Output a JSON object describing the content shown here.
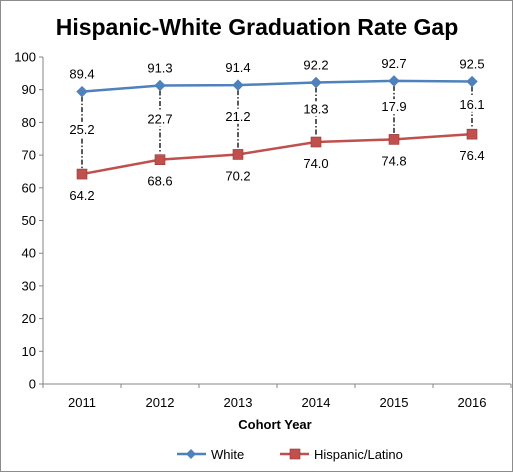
{
  "chart_data": {
    "type": "line",
    "title": "Hispanic-White Graduation Rate Gap",
    "xlabel": "Cohort Year",
    "ylabel": "",
    "categories": [
      "2011",
      "2012",
      "2013",
      "2014",
      "2015",
      "2016"
    ],
    "ylim": [
      0,
      100
    ],
    "yticks": [
      "0",
      "10",
      "20",
      "30",
      "40",
      "50",
      "60",
      "70",
      "80",
      "90",
      "100"
    ],
    "grid": false,
    "legend_position": "bottom",
    "series": [
      {
        "name": "White",
        "values": [
          89.4,
          91.3,
          91.4,
          92.2,
          92.7,
          92.5
        ],
        "labels": [
          "89.4",
          "91.3",
          "91.4",
          "92.2",
          "92.7",
          "92.5"
        ],
        "color": "#4f81bd",
        "marker": "diamond"
      },
      {
        "name": "Hispanic/Latino",
        "values": [
          64.2,
          68.6,
          70.2,
          74.0,
          74.8,
          76.4
        ],
        "labels": [
          "64.2",
          "68.6",
          "70.2",
          "74.0",
          "74.8",
          "76.4"
        ],
        "color": "#c0504d",
        "marker": "square"
      }
    ],
    "gap_labels": [
      "25.2",
      "22.7",
      "21.2",
      "18.3",
      "17.9",
      "16.1"
    ]
  }
}
